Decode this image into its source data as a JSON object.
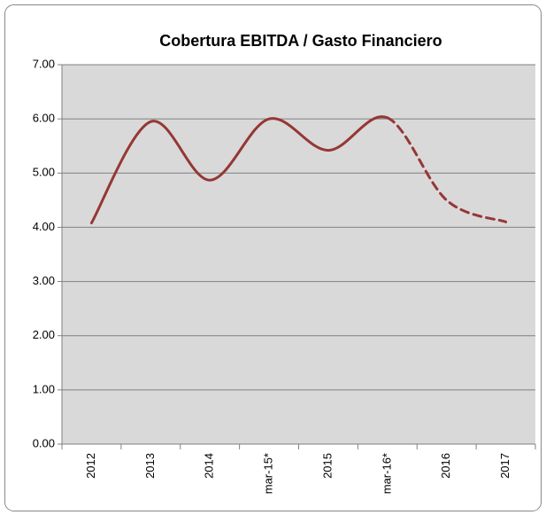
{
  "chart_data": {
    "type": "line",
    "title": "Cobertura EBITDA / Gasto Financiero",
    "categories": [
      "2012",
      "2013",
      "2014",
      "mar-15*",
      "2015",
      "mar-16*",
      "2016",
      "2017"
    ],
    "values": [
      4.08,
      5.95,
      4.87,
      6.0,
      5.42,
      6.02,
      4.5,
      4.1
    ],
    "color": "#953735",
    "dashed_from": 5,
    "ylim": [
      0,
      7
    ],
    "yticks": [
      {
        "value": 0,
        "label": "0.00"
      },
      {
        "value": 1,
        "label": "1.00"
      },
      {
        "value": 2,
        "label": "2.00"
      },
      {
        "value": 3,
        "label": "3.00"
      },
      {
        "value": 4,
        "label": "4.00"
      },
      {
        "value": 5,
        "label": "5.00"
      },
      {
        "value": 6,
        "label": "6.00"
      },
      {
        "value": 7,
        "label": "7.00"
      }
    ],
    "grid": true
  }
}
